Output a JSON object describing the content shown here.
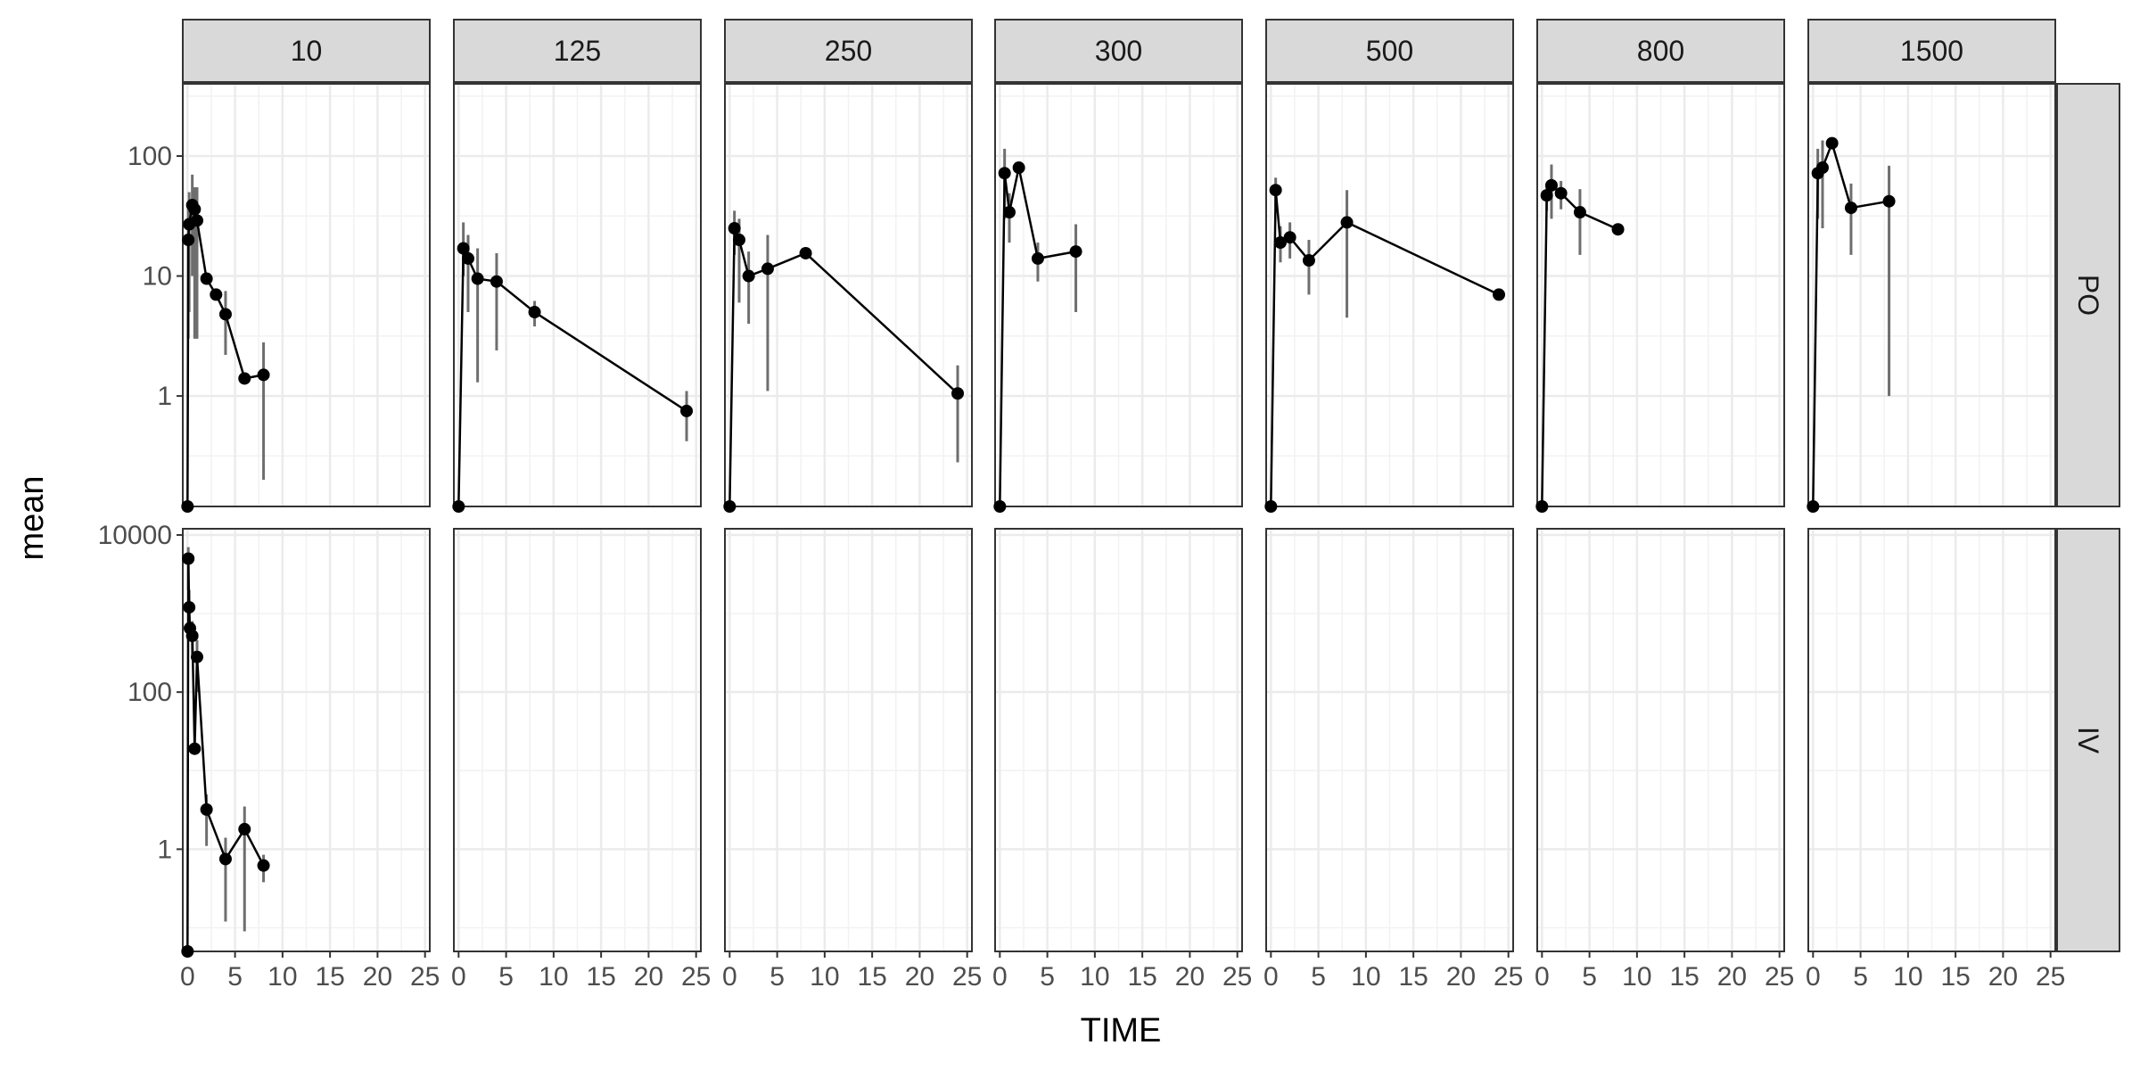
{
  "chart_data": {
    "type": "line",
    "xlabel": "TIME",
    "ylabel": "mean",
    "facet_columns": [
      "10",
      "125",
      "250",
      "300",
      "500",
      "800",
      "1500"
    ],
    "facet_rows": [
      "PO",
      "IV"
    ],
    "x_ticks": [
      0,
      5,
      10,
      15,
      20,
      25
    ],
    "xlim": [
      -0.5,
      25.5
    ],
    "y_scale": "log10",
    "rows": {
      "PO": {
        "ylim": [
          0.12,
          400
        ],
        "y_ticks": [
          1,
          10,
          100
        ],
        "y_tick_labels": [
          "1",
          "10",
          "100"
        ]
      },
      "IV": {
        "ylim": [
          0.05,
          12000
        ],
        "y_ticks": [
          1,
          100,
          10000
        ],
        "y_tick_labels": [
          "1",
          "100",
          "10000"
        ]
      }
    },
    "panels": [
      {
        "row": "PO",
        "col": "10",
        "points": [
          {
            "x": 0,
            "y": 0.1
          },
          {
            "x": 0.08,
            "y": 20,
            "lo": 3,
            "hi": 40
          },
          {
            "x": 0.17,
            "y": 27,
            "lo": 5,
            "hi": 50
          },
          {
            "x": 0.5,
            "y": 39,
            "lo": 10,
            "hi": 70
          },
          {
            "x": 0.75,
            "y": 36,
            "lo": 3,
            "hi": 55
          },
          {
            "x": 1,
            "y": 29,
            "lo": 3,
            "hi": 55
          },
          {
            "x": 2,
            "y": 9.5
          },
          {
            "x": 3,
            "y": 7
          },
          {
            "x": 4,
            "y": 4.8,
            "lo": 2.2,
            "hi": 7.5
          },
          {
            "x": 6,
            "y": 1.4
          },
          {
            "x": 8,
            "y": 1.5,
            "lo": 0.2,
            "hi": 2.8
          }
        ]
      },
      {
        "row": "PO",
        "col": "125",
        "points": [
          {
            "x": 0,
            "y": 0.1
          },
          {
            "x": 0.5,
            "y": 17,
            "lo": 10,
            "hi": 28
          },
          {
            "x": 1,
            "y": 14,
            "lo": 5,
            "hi": 22
          },
          {
            "x": 2,
            "y": 9.5,
            "lo": 1.3,
            "hi": 17
          },
          {
            "x": 4,
            "y": 9,
            "lo": 2.4,
            "hi": 15.5
          },
          {
            "x": 8,
            "y": 5,
            "lo": 3.8,
            "hi": 6.2
          },
          {
            "x": 24,
            "y": 0.75,
            "lo": 0.42,
            "hi": 1.1
          }
        ]
      },
      {
        "row": "PO",
        "col": "250",
        "points": [
          {
            "x": 0,
            "y": 0.1
          },
          {
            "x": 0.5,
            "y": 25,
            "lo": 15,
            "hi": 35
          },
          {
            "x": 1,
            "y": 20,
            "lo": 6,
            "hi": 30
          },
          {
            "x": 2,
            "y": 10,
            "lo": 4,
            "hi": 16
          },
          {
            "x": 4,
            "y": 11.5,
            "lo": 1.1,
            "hi": 22
          },
          {
            "x": 8,
            "y": 15.5
          },
          {
            "x": 24,
            "y": 1.05,
            "lo": 0.28,
            "hi": 1.8
          }
        ]
      },
      {
        "row": "PO",
        "col": "300",
        "points": [
          {
            "x": 0,
            "y": 0.1
          },
          {
            "x": 0.5,
            "y": 72,
            "lo": 30,
            "hi": 115
          },
          {
            "x": 1,
            "y": 34,
            "lo": 19,
            "hi": 49
          },
          {
            "x": 2,
            "y": 80
          },
          {
            "x": 4,
            "y": 14,
            "lo": 9,
            "hi": 19
          },
          {
            "x": 8,
            "y": 16,
            "lo": 5,
            "hi": 27
          }
        ]
      },
      {
        "row": "PO",
        "col": "500",
        "points": [
          {
            "x": 0,
            "y": 0.1
          },
          {
            "x": 0.5,
            "y": 52,
            "lo": 38,
            "hi": 66
          },
          {
            "x": 1,
            "y": 19,
            "lo": 13,
            "hi": 26
          },
          {
            "x": 2,
            "y": 21,
            "lo": 14,
            "hi": 28
          },
          {
            "x": 4,
            "y": 13.5,
            "lo": 7,
            "hi": 20
          },
          {
            "x": 8,
            "y": 28,
            "lo": 4.5,
            "hi": 52
          },
          {
            "x": 24,
            "y": 7
          }
        ]
      },
      {
        "row": "PO",
        "col": "800",
        "points": [
          {
            "x": 0,
            "y": 0.1
          },
          {
            "x": 0.5,
            "y": 47,
            "lo": 35,
            "hi": 59
          },
          {
            "x": 1,
            "y": 57,
            "lo": 30,
            "hi": 85
          },
          {
            "x": 2,
            "y": 49,
            "lo": 36,
            "hi": 62
          },
          {
            "x": 4,
            "y": 34,
            "lo": 15,
            "hi": 53
          },
          {
            "x": 8,
            "y": 24.5
          }
        ]
      },
      {
        "row": "PO",
        "col": "1500",
        "points": [
          {
            "x": 0,
            "y": 0.1
          },
          {
            "x": 0.5,
            "y": 72,
            "lo": 30,
            "hi": 115
          },
          {
            "x": 1,
            "y": 80,
            "lo": 25,
            "hi": 135
          },
          {
            "x": 2,
            "y": 128
          },
          {
            "x": 4,
            "y": 37,
            "lo": 15,
            "hi": 59
          },
          {
            "x": 8,
            "y": 42,
            "lo": 1,
            "hi": 83
          }
        ]
      },
      {
        "row": "IV",
        "col": "10",
        "points": [
          {
            "x": 0,
            "y": 0.05
          },
          {
            "x": 0.08,
            "y": 5000,
            "lo": 2000,
            "hi": 7000
          },
          {
            "x": 0.17,
            "y": 1200,
            "lo": 500,
            "hi": 2000
          },
          {
            "x": 0.25,
            "y": 650
          },
          {
            "x": 0.5,
            "y": 520,
            "lo": 300,
            "hi": 800
          },
          {
            "x": 0.75,
            "y": 19
          },
          {
            "x": 1,
            "y": 280,
            "lo": 100,
            "hi": 460
          },
          {
            "x": 2,
            "y": 3.2,
            "lo": 1.1,
            "hi": 5
          },
          {
            "x": 4,
            "y": 0.75,
            "lo": 0.12,
            "hi": 1.4
          },
          {
            "x": 6,
            "y": 1.8,
            "lo": 0.09,
            "hi": 3.5
          },
          {
            "x": 8,
            "y": 0.62,
            "lo": 0.38,
            "hi": 0.85
          }
        ]
      }
    ]
  }
}
